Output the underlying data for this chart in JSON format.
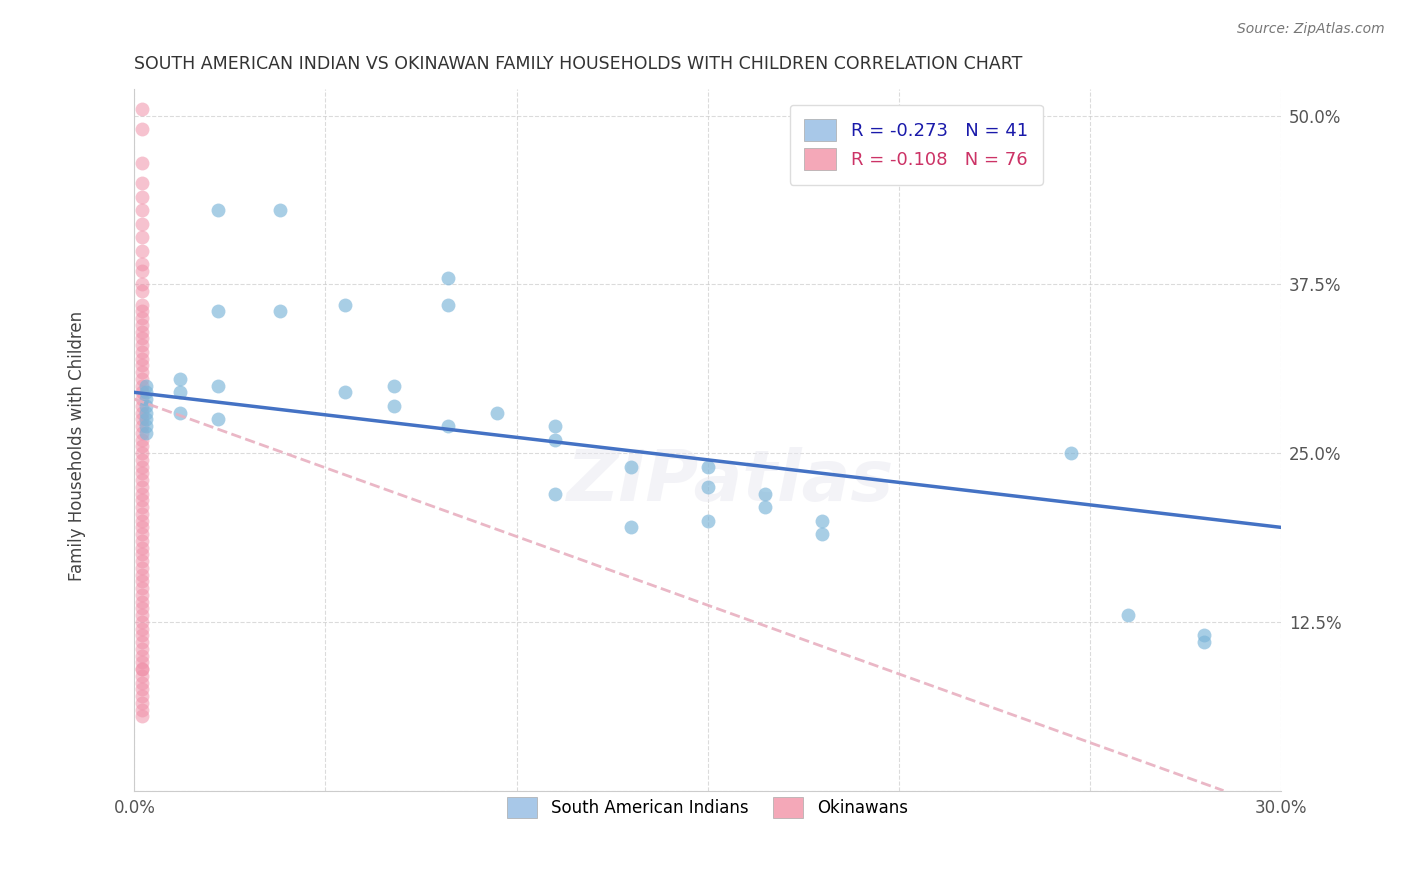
{
  "title": "SOUTH AMERICAN INDIAN VS OKINAWAN FAMILY HOUSEHOLDS WITH CHILDREN CORRELATION CHART",
  "source": "Source: ZipAtlas.com",
  "ylabel": "Family Households with Children",
  "xlim": [
    0.0,
    0.3
  ],
  "ylim": [
    0.0,
    0.52
  ],
  "yticks": [
    0.0,
    0.125,
    0.25,
    0.375,
    0.5
  ],
  "yticklabels": [
    "",
    "12.5%",
    "25.0%",
    "37.5%",
    "50.0%"
  ],
  "xticks": [
    0.0,
    0.05,
    0.1,
    0.15,
    0.2,
    0.25,
    0.3
  ],
  "xticklabels": [
    "0.0%",
    "",
    "",
    "",
    "",
    "",
    "30.0%"
  ],
  "legend_top": [
    {
      "label": "R = -0.273   N = 41",
      "facecolor": "#a8c8e8"
    },
    {
      "label": "R = -0.108   N = 76",
      "facecolor": "#f4a8b8"
    }
  ],
  "legend_bottom": [
    "South American Indians",
    "Okinawans"
  ],
  "blue_scatter_color": "#7ab4d8",
  "pink_scatter_color": "#f090a8",
  "blue_line_color": "#4472c4",
  "pink_line_color": "#e8b0c0",
  "background_color": "#ffffff",
  "grid_color": "#cccccc",
  "blue_x": [
    0.003,
    0.003,
    0.003,
    0.003,
    0.003,
    0.003,
    0.003,
    0.003,
    0.012,
    0.012,
    0.012,
    0.022,
    0.022,
    0.022,
    0.022,
    0.038,
    0.038,
    0.055,
    0.055,
    0.068,
    0.068,
    0.082,
    0.082,
    0.082,
    0.095,
    0.11,
    0.11,
    0.11,
    0.13,
    0.13,
    0.15,
    0.15,
    0.15,
    0.165,
    0.165,
    0.18,
    0.18,
    0.245,
    0.26,
    0.28,
    0.28
  ],
  "blue_y": [
    0.3,
    0.295,
    0.29,
    0.285,
    0.28,
    0.275,
    0.27,
    0.265,
    0.305,
    0.295,
    0.28,
    0.43,
    0.355,
    0.3,
    0.275,
    0.43,
    0.355,
    0.36,
    0.295,
    0.3,
    0.285,
    0.38,
    0.36,
    0.27,
    0.28,
    0.27,
    0.26,
    0.22,
    0.24,
    0.195,
    0.24,
    0.225,
    0.2,
    0.22,
    0.21,
    0.2,
    0.19,
    0.25,
    0.13,
    0.115,
    0.11
  ],
  "pink_x": [
    0.002,
    0.002,
    0.002,
    0.002,
    0.002,
    0.002,
    0.002,
    0.002,
    0.002,
    0.002,
    0.002,
    0.002,
    0.002,
    0.002,
    0.002,
    0.002,
    0.002,
    0.002,
    0.002,
    0.002,
    0.002,
    0.002,
    0.002,
    0.002,
    0.002,
    0.002,
    0.002,
    0.002,
    0.002,
    0.002,
    0.002,
    0.002,
    0.002,
    0.002,
    0.002,
    0.002,
    0.002,
    0.002,
    0.002,
    0.002,
    0.002,
    0.002,
    0.002,
    0.002,
    0.002,
    0.002,
    0.002,
    0.002,
    0.002,
    0.002,
    0.002,
    0.002,
    0.002,
    0.002,
    0.002,
    0.002,
    0.002,
    0.002,
    0.002,
    0.002,
    0.002,
    0.002,
    0.002,
    0.002,
    0.002,
    0.002,
    0.002,
    0.002,
    0.002,
    0.002,
    0.002,
    0.002,
    0.002,
    0.002,
    0.002,
    0.002
  ],
  "pink_y": [
    0.505,
    0.49,
    0.465,
    0.45,
    0.44,
    0.43,
    0.42,
    0.41,
    0.4,
    0.39,
    0.385,
    0.375,
    0.37,
    0.36,
    0.355,
    0.35,
    0.345,
    0.34,
    0.335,
    0.33,
    0.325,
    0.32,
    0.315,
    0.31,
    0.305,
    0.3,
    0.295,
    0.29,
    0.285,
    0.28,
    0.275,
    0.27,
    0.265,
    0.26,
    0.255,
    0.25,
    0.245,
    0.24,
    0.235,
    0.23,
    0.225,
    0.22,
    0.215,
    0.21,
    0.205,
    0.2,
    0.195,
    0.19,
    0.185,
    0.18,
    0.175,
    0.17,
    0.165,
    0.16,
    0.155,
    0.15,
    0.145,
    0.14,
    0.135,
    0.13,
    0.125,
    0.12,
    0.115,
    0.11,
    0.105,
    0.1,
    0.095,
    0.09,
    0.085,
    0.08,
    0.075,
    0.07,
    0.065,
    0.06,
    0.055,
    0.09
  ],
  "blue_line_x": [
    0.0,
    0.3
  ],
  "blue_line_y": [
    0.295,
    0.195
  ],
  "pink_line_x": [
    0.0,
    0.285
  ],
  "pink_line_y": [
    0.29,
    0.0
  ],
  "figsize": [
    14.06,
    8.92
  ],
  "dpi": 100
}
